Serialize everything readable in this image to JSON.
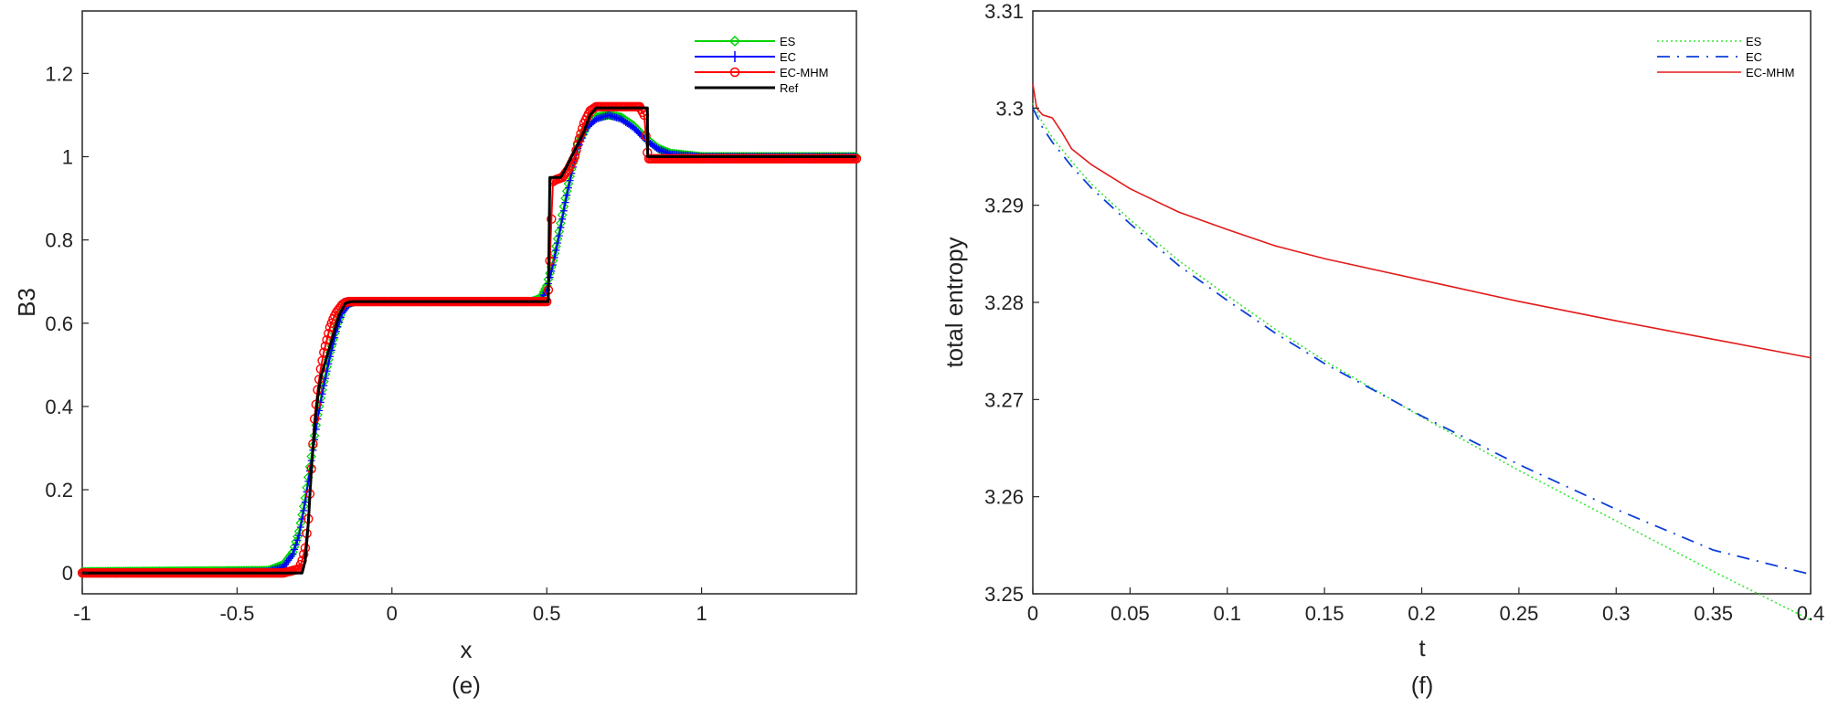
{
  "colors": {
    "es": "#00d400",
    "ec": "#0000ff",
    "ecmhm": "#ff0000",
    "ref": "#000000",
    "ec_line": "#0c3fd9",
    "es_dotted": "#33e633",
    "ecmhm_line": "#e31a1a"
  },
  "chart_data": [
    {
      "type": "line",
      "caption": "(e)",
      "xlabel": "x",
      "ylabel": "B3",
      "xlim": [
        -1,
        1.5
      ],
      "ylim": [
        -0.05,
        1.35
      ],
      "xticks": [
        -1,
        -0.5,
        0,
        0.5,
        1
      ],
      "xtick_labels": [
        "-1",
        "-0.5",
        "0",
        "0.5",
        "1"
      ],
      "yticks": [
        0,
        0.2,
        0.4,
        0.6,
        0.8,
        1,
        1.2
      ],
      "ytick_labels": [
        "0",
        "0.2",
        "0.4",
        "0.6",
        "0.8",
        "1",
        "1.2"
      ],
      "legend": {
        "position": "top-right",
        "entries": [
          "ES",
          "EC",
          "EC-MHM",
          "Ref"
        ]
      },
      "series": [
        {
          "name": "ES",
          "marker": "diamond",
          "x": [
            -1,
            -0.4,
            -0.35,
            -0.32,
            -0.3,
            -0.28,
            -0.26,
            -0.24,
            -0.22,
            -0.2,
            -0.18,
            -0.16,
            -0.14,
            -0.12,
            -0.1,
            0.45,
            0.48,
            0.5,
            0.52,
            0.54,
            0.56,
            0.58,
            0.6,
            0.63,
            0.66,
            0.7,
            0.74,
            0.78,
            0.82,
            0.86,
            0.9,
            1.0,
            1.5
          ],
          "y": [
            0.003,
            0.006,
            0.02,
            0.05,
            0.1,
            0.18,
            0.28,
            0.38,
            0.46,
            0.53,
            0.59,
            0.63,
            0.648,
            0.652,
            0.652,
            0.652,
            0.66,
            0.69,
            0.75,
            0.82,
            0.9,
            0.97,
            1.03,
            1.075,
            1.095,
            1.1,
            1.095,
            1.075,
            1.045,
            1.02,
            1.008,
            1.0,
            1.0
          ]
        },
        {
          "name": "EC",
          "marker": "plus",
          "x": [
            -1,
            -0.4,
            -0.35,
            -0.32,
            -0.3,
            -0.28,
            -0.26,
            -0.24,
            -0.22,
            -0.2,
            -0.18,
            -0.16,
            -0.14,
            -0.12,
            -0.1,
            0.45,
            0.48,
            0.5,
            0.52,
            0.54,
            0.56,
            0.58,
            0.6,
            0.63,
            0.66,
            0.7,
            0.74,
            0.78,
            0.82,
            0.86,
            0.9,
            1.0,
            1.5
          ],
          "y": [
            0.0,
            0.004,
            0.015,
            0.045,
            0.09,
            0.17,
            0.27,
            0.37,
            0.45,
            0.52,
            0.58,
            0.625,
            0.645,
            0.65,
            0.65,
            0.65,
            0.655,
            0.68,
            0.74,
            0.81,
            0.89,
            0.96,
            1.02,
            1.07,
            1.09,
            1.1,
            1.09,
            1.07,
            1.04,
            1.018,
            1.006,
            1.0,
            1.0
          ]
        },
        {
          "name": "EC-MHM",
          "marker": "circle",
          "x": [
            -1,
            -0.35,
            -0.3,
            -0.29,
            -0.28,
            -0.27,
            -0.26,
            -0.25,
            -0.24,
            -0.23,
            -0.22,
            -0.21,
            -0.2,
            -0.19,
            -0.18,
            -0.17,
            -0.16,
            -0.15,
            -0.14,
            -0.12,
            -0.1,
            0.5,
            0.505,
            0.51,
            0.515,
            0.52,
            0.53,
            0.55,
            0.57,
            0.59,
            0.6,
            0.62,
            0.64,
            0.66,
            0.7,
            0.75,
            0.8,
            0.815,
            0.82,
            0.825,
            0.83,
            0.85,
            0.9,
            1.0,
            1.5
          ],
          "y": [
            0.0,
            0.0,
            0.01,
            0.03,
            0.06,
            0.13,
            0.25,
            0.37,
            0.44,
            0.49,
            0.53,
            0.56,
            0.59,
            0.61,
            0.625,
            0.635,
            0.645,
            0.65,
            0.652,
            0.652,
            0.652,
            0.652,
            0.68,
            0.75,
            0.85,
            0.94,
            0.945,
            0.95,
            0.97,
            1.0,
            1.03,
            1.08,
            1.11,
            1.12,
            1.12,
            1.12,
            1.12,
            1.1,
            1.05,
            1.01,
            0.995,
            0.995,
            0.995,
            0.995,
            0.995
          ]
        },
        {
          "name": "Ref",
          "marker": "none",
          "x": [
            -1,
            -0.29,
            -0.28,
            -0.27,
            -0.26,
            -0.25,
            -0.24,
            -0.23,
            -0.21,
            -0.19,
            -0.17,
            -0.15,
            -0.13,
            -0.1,
            0.505,
            0.51,
            0.52,
            0.53,
            0.545,
            0.56,
            0.58,
            0.6,
            0.62,
            0.64,
            0.66,
            0.7,
            0.75,
            0.8,
            0.825,
            0.826,
            0.83,
            1.0,
            1.5
          ],
          "y": [
            0.0,
            0.0,
            0.03,
            0.12,
            0.25,
            0.35,
            0.42,
            0.47,
            0.52,
            0.57,
            0.62,
            0.648,
            0.652,
            0.652,
            0.652,
            0.95,
            0.95,
            0.95,
            0.95,
            0.97,
            1.0,
            1.03,
            1.06,
            1.1,
            1.117,
            1.117,
            1.117,
            1.117,
            1.117,
            1.0,
            1.0,
            1.0,
            1.0
          ]
        }
      ]
    },
    {
      "type": "line",
      "caption": "(f)",
      "xlabel": "t",
      "ylabel": "total entropy",
      "xlim": [
        0,
        0.4
      ],
      "ylim": [
        3.25,
        3.31
      ],
      "xticks": [
        0,
        0.05,
        0.1,
        0.15,
        0.2,
        0.25,
        0.3,
        0.35,
        0.4
      ],
      "xtick_labels": [
        "0",
        "0.05",
        "0.1",
        "0.15",
        "0.2",
        "0.25",
        "0.3",
        "0.35",
        "0.4"
      ],
      "yticks": [
        3.25,
        3.26,
        3.27,
        3.28,
        3.29,
        3.3,
        3.31
      ],
      "ytick_labels": [
        "3.25",
        "3.26",
        "3.27",
        "3.28",
        "3.29",
        "3.3",
        "3.31"
      ],
      "legend": {
        "position": "top-right",
        "entries": [
          "ES",
          "EC",
          "EC-MHM"
        ]
      },
      "series": [
        {
          "name": "ES",
          "style": "dotted",
          "x": [
            0,
            0.005,
            0.01,
            0.02,
            0.03,
            0.05,
            0.075,
            0.1,
            0.125,
            0.15,
            0.2,
            0.25,
            0.3,
            0.35,
            0.4
          ],
          "y": [
            3.3005,
            3.2985,
            3.297,
            3.2945,
            3.2922,
            3.2885,
            3.2843,
            3.2807,
            3.2772,
            3.274,
            3.2682,
            3.2627,
            3.2575,
            3.2523,
            3.2473
          ]
        },
        {
          "name": "EC",
          "style": "dashed",
          "x": [
            0,
            0.005,
            0.01,
            0.02,
            0.03,
            0.05,
            0.075,
            0.1,
            0.125,
            0.15,
            0.2,
            0.25,
            0.3,
            0.35,
            0.4
          ],
          "y": [
            3.3,
            3.298,
            3.2965,
            3.294,
            3.2918,
            3.2881,
            3.2838,
            3.2802,
            3.2768,
            3.2737,
            3.2683,
            3.2633,
            3.2587,
            3.2545,
            3.252
          ]
        },
        {
          "name": "EC-MHM",
          "style": "solid",
          "x": [
            0,
            0.002,
            0.005,
            0.01,
            0.015,
            0.02,
            0.03,
            0.05,
            0.075,
            0.1,
            0.125,
            0.15,
            0.2,
            0.25,
            0.3,
            0.35,
            0.4
          ],
          "y": [
            3.3025,
            3.3,
            3.2993,
            3.299,
            3.2975,
            3.2958,
            3.2942,
            3.2917,
            3.2893,
            3.2875,
            3.2858,
            3.2845,
            3.2823,
            3.2801,
            3.2781,
            3.2762,
            3.2743
          ]
        }
      ]
    }
  ]
}
